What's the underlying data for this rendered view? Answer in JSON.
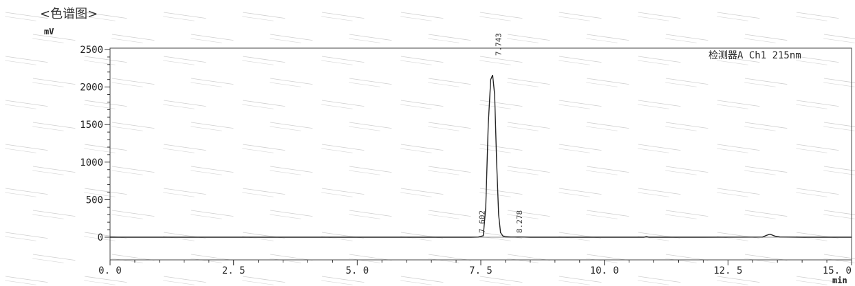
{
  "chart_data": {
    "type": "line",
    "title": "<色谱图>",
    "ylabel": "mV",
    "xlabel": "min",
    "xlim": [
      0,
      15
    ],
    "ylim": [
      -150,
      2500
    ],
    "x_ticks": [
      0,
      2.5,
      5.0,
      7.5,
      10.0,
      12.5,
      15.0
    ],
    "x_tick_labels": [
      "0. 0",
      "2. 5",
      "5. 0",
      "7. 5",
      "10. 0",
      "12. 5",
      "15. 0"
    ],
    "y_ticks": [
      0,
      500,
      1000,
      1500,
      2000,
      2500
    ],
    "y_tick_labels": [
      "0",
      "500",
      "1000",
      "1500",
      "2000",
      "2500"
    ],
    "detector_label": "检测器A Ch1 215nm",
    "series": [
      {
        "x": [
          0,
          2,
          4,
          6,
          7.0,
          7.3,
          7.45,
          7.55,
          7.6,
          7.65,
          7.7,
          7.74,
          7.78,
          7.82,
          7.86,
          7.9,
          7.95,
          8.0,
          8.1,
          8.278,
          8.5,
          10.0,
          10.8,
          10.85,
          10.9,
          12.0,
          13.2,
          13.28,
          13.35,
          13.45,
          13.55,
          14.0,
          15.0
        ],
        "y": [
          0,
          0,
          0,
          0,
          0,
          0,
          2,
          20,
          400,
          1500,
          2100,
          2160,
          1900,
          1000,
          300,
          60,
          15,
          5,
          2,
          3,
          0,
          0,
          0,
          8,
          0,
          0,
          2,
          25,
          40,
          15,
          3,
          0,
          0
        ]
      }
    ],
    "peaks": [
      {
        "time": 7.743,
        "label": "7.743"
      },
      {
        "time": 7.602,
        "label": "7.602"
      },
      {
        "time": 8.278,
        "label": "8.278"
      }
    ]
  }
}
